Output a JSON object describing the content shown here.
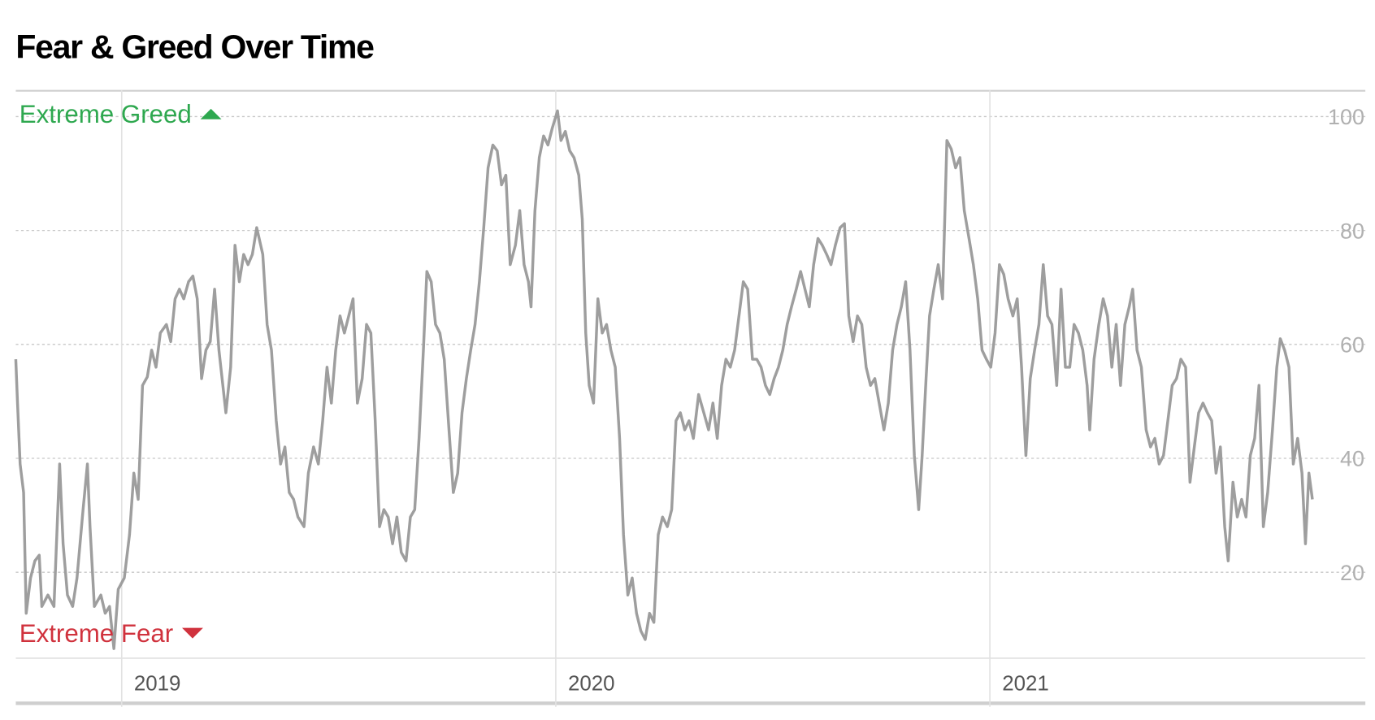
{
  "chart_data": {
    "type": "line",
    "title": "Fear & Greed Over Time",
    "annotations": [
      {
        "text": "Extreme Greed",
        "color": "#2ea84f"
      },
      {
        "text": "Extreme Fear",
        "color": "#d0323d"
      }
    ],
    "color": "#9e9e9e",
    "xlim": [
      2018.756,
      2021.865
    ],
    "xticks": [
      2019,
      2020,
      2021
    ],
    "ylim": [
      5,
      104.6
    ],
    "yticks": [
      20,
      40,
      60,
      80,
      100
    ],
    "grid": true,
    "x": [
      2018.756,
      2018.76,
      2018.766,
      2018.774,
      2018.78,
      2018.79,
      2018.8,
      2018.81,
      2018.816,
      2018.83,
      2018.844,
      2018.857,
      2018.865,
      2018.875,
      2018.887,
      2018.897,
      2018.911,
      2018.921,
      2018.927,
      2018.937,
      2018.952,
      2018.962,
      2018.972,
      2018.982,
      2018.992,
      2019.006,
      2019.018,
      2019.028,
      2019.038,
      2019.048,
      2019.059,
      2019.069,
      2019.079,
      2019.089,
      2019.103,
      2019.113,
      2019.123,
      2019.133,
      2019.143,
      2019.154,
      2019.164,
      2019.174,
      2019.184,
      2019.194,
      2019.204,
      2019.214,
      2019.224,
      2019.24,
      2019.251,
      2019.261,
      2019.271,
      2019.281,
      2019.291,
      2019.301,
      2019.311,
      2019.325,
      2019.335,
      2019.345,
      2019.356,
      2019.366,
      2019.376,
      2019.386,
      2019.396,
      2019.406,
      2019.42,
      2019.43,
      2019.442,
      2019.453,
      2019.463,
      2019.473,
      2019.483,
      2019.493,
      2019.503,
      2019.513,
      2019.523,
      2019.533,
      2019.543,
      2019.554,
      2019.564,
      2019.574,
      2019.584,
      2019.594,
      2019.604,
      2019.614,
      2019.624,
      2019.634,
      2019.644,
      2019.655,
      2019.665,
      2019.675,
      2019.685,
      2019.695,
      2019.703,
      2019.713,
      2019.723,
      2019.733,
      2019.743,
      2019.754,
      2019.764,
      2019.774,
      2019.784,
      2019.794,
      2019.804,
      2019.814,
      2019.824,
      2019.834,
      2019.844,
      2019.855,
      2019.865,
      2019.875,
      2019.885,
      2019.895,
      2019.907,
      2019.917,
      2019.927,
      2019.937,
      2019.943,
      2019.952,
      2019.962,
      2019.972,
      2019.982,
      2019.992,
      2020.004,
      2020.012,
      2020.022,
      2020.032,
      2020.042,
      2020.053,
      2020.061,
      2020.069,
      2020.077,
      2020.087,
      2020.097,
      2020.107,
      2020.117,
      2020.127,
      2020.137,
      2020.147,
      2020.156,
      2020.166,
      2020.176,
      2020.186,
      2020.196,
      2020.206,
      2020.216,
      2020.226,
      2020.236,
      2020.246,
      2020.257,
      2020.267,
      2020.277,
      2020.287,
      2020.297,
      2020.307,
      2020.317,
      2020.329,
      2020.341,
      2020.352,
      2020.362,
      2020.372,
      2020.382,
      2020.392,
      2020.402,
      2020.412,
      2020.422,
      2020.432,
      2020.442,
      2020.453,
      2020.463,
      2020.473,
      2020.483,
      2020.493,
      2020.503,
      2020.513,
      2020.523,
      2020.533,
      2020.543,
      2020.554,
      2020.564,
      2020.574,
      2020.584,
      2020.594,
      2020.604,
      2020.614,
      2020.624,
      2020.634,
      2020.644,
      2020.655,
      2020.665,
      2020.675,
      2020.685,
      2020.695,
      2020.705,
      2020.715,
      2020.725,
      2020.735,
      2020.745,
      2020.756,
      2020.766,
      2020.776,
      2020.786,
      2020.796,
      2020.806,
      2020.816,
      2020.826,
      2020.836,
      2020.844,
      2020.853,
      2020.861,
      2020.871,
      2020.881,
      2020.891,
      2020.901,
      2020.911,
      2020.921,
      2020.931,
      2020.941,
      2020.952,
      2020.962,
      2020.972,
      2020.982,
      2020.992,
      2021.002,
      2021.012,
      2021.022,
      2021.032,
      2021.042,
      2021.053,
      2021.063,
      2021.073,
      2021.083,
      2021.093,
      2021.103,
      2021.113,
      2021.123,
      2021.133,
      2021.143,
      2021.154,
      2021.164,
      2021.174,
      2021.184,
      2021.194,
      2021.204,
      2021.214,
      2021.224,
      2021.23,
      2021.24,
      2021.251,
      2021.261,
      2021.271,
      2021.281,
      2021.291,
      2021.301,
      2021.311,
      2021.321,
      2021.329,
      2021.339,
      2021.349,
      2021.36,
      2021.37,
      2021.38,
      2021.39,
      2021.4,
      2021.41,
      2021.42,
      2021.43,
      2021.44,
      2021.451,
      2021.461,
      2021.471,
      2021.481,
      2021.491,
      2021.501,
      2021.511,
      2021.521,
      2021.531,
      2021.541,
      2021.549,
      2021.56,
      2021.57,
      2021.58,
      2021.59,
      2021.6,
      2021.61,
      2021.62,
      2021.63,
      2021.64,
      2021.651,
      2021.661,
      2021.669,
      2021.679,
      2021.689,
      2021.699,
      2021.709,
      2021.719,
      2021.727,
      2021.735,
      2021.743
    ],
    "values": [
      57.4,
      49.7,
      39,
      34,
      12.8,
      19,
      22,
      23,
      14,
      16,
      14,
      39,
      25,
      16,
      14,
      19,
      31,
      39,
      28,
      14,
      16,
      12.8,
      14,
      6.6,
      17,
      19,
      26.6,
      37.4,
      32.8,
      52.8,
      54.3,
      59,
      56,
      62,
      63.5,
      60.5,
      68,
      69.7,
      68,
      71,
      72,
      68,
      54,
      59,
      60.5,
      69.7,
      59,
      48,
      56,
      77.4,
      71,
      75.8,
      74,
      75.8,
      80.5,
      75.8,
      63.5,
      59,
      46.6,
      39,
      42,
      34,
      32.8,
      29.7,
      28,
      37.4,
      42,
      39,
      46.6,
      56,
      49.7,
      59,
      65,
      62,
      65,
      68,
      49.7,
      54,
      63.5,
      62,
      46.6,
      28,
      31,
      29.7,
      25,
      29.7,
      23.5,
      22,
      29.7,
      31,
      43.5,
      59,
      72.8,
      71,
      63.5,
      62,
      57.4,
      45,
      34,
      37.4,
      48,
      54,
      59,
      63.5,
      71,
      80.5,
      91,
      95,
      94,
      88,
      89.7,
      74,
      77.4,
      83.5,
      74,
      71,
      66.6,
      83.5,
      92.8,
      96.6,
      95,
      98,
      101,
      95.8,
      97.4,
      94,
      92.8,
      89.7,
      82,
      62,
      52.8,
      49.7,
      68,
      62,
      63.5,
      59,
      56,
      43.5,
      26.6,
      16,
      19,
      12.8,
      9.7,
      8.2,
      12.8,
      11.2,
      26.6,
      29.7,
      28,
      31,
      46.6,
      48,
      45,
      46.6,
      43.5,
      51.2,
      48,
      45,
      49.7,
      43.5,
      52.8,
      57.4,
      56,
      59,
      65,
      71,
      69.7,
      57.4,
      57.4,
      56,
      52.8,
      51.2,
      54,
      56,
      59,
      63.5,
      66.6,
      69.7,
      72.8,
      69.7,
      66.6,
      74,
      78.6,
      77.4,
      75.8,
      74,
      77.4,
      80.5,
      81.2,
      65,
      60.5,
      65,
      63.5,
      56,
      52.8,
      54,
      49.7,
      45,
      49.7,
      59,
      63.5,
      66.6,
      71,
      59,
      40.5,
      31,
      40.5,
      54,
      65,
      69.7,
      74,
      68,
      95.8,
      94.3,
      91,
      92.8,
      83.5,
      78.6,
      74,
      68,
      59,
      57.4,
      56,
      62,
      74,
      72.3,
      68,
      65,
      68,
      56,
      40.5,
      54,
      59,
      63.5,
      74,
      65,
      63.5,
      52.8,
      69.7,
      56,
      56,
      63.5,
      62,
      59,
      52.8,
      45,
      57.4,
      63.5,
      68,
      65,
      56,
      63.5,
      52.8,
      63.5,
      66.6,
      69.7,
      59,
      56,
      45,
      42,
      43.5,
      39,
      40.5,
      46.6,
      52.8,
      54,
      57.4,
      56,
      35.8,
      42,
      48,
      49.7,
      48,
      46.6,
      37.4,
      42,
      28,
      22,
      35.8,
      29.7,
      32.8,
      29.7,
      40.5,
      43.5,
      52.8,
      28,
      34,
      45,
      56,
      61,
      59,
      56,
      39,
      43.5,
      37.4,
      25,
      37.4,
      32.8
    ]
  }
}
